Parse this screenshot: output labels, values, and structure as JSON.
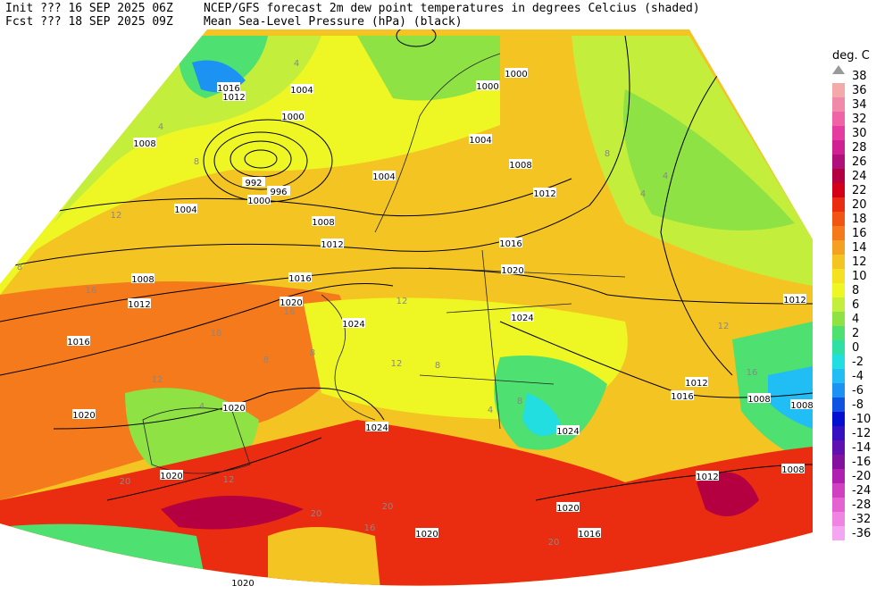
{
  "header": {
    "init": "Init  ??? 16 SEP 2025 06Z",
    "fcst": "Fcst ??? 18 SEP 2025 09Z",
    "title": "NCEP/GFS forecast 2m dew point temperatures in degrees Celcius (shaded)",
    "subtitle": "Mean Sea-Level Pressure (hPa) (black)"
  },
  "colorbar": {
    "title": "deg. C",
    "top": 38,
    "levels": [
      {
        "value": 36,
        "color": "#f4aaaa"
      },
      {
        "value": 34,
        "color": "#f08aa8"
      },
      {
        "value": 32,
        "color": "#ee64a4"
      },
      {
        "value": 30,
        "color": "#e63ca0"
      },
      {
        "value": 28,
        "color": "#d02094"
      },
      {
        "value": 26,
        "color": "#b0107a"
      },
      {
        "value": 24,
        "color": "#b40040"
      },
      {
        "value": 22,
        "color": "#d40018"
      },
      {
        "value": 20,
        "color": "#ea2c10"
      },
      {
        "value": 18,
        "color": "#f25412"
      },
      {
        "value": 16,
        "color": "#f47a1c"
      },
      {
        "value": 14,
        "color": "#f4a020"
      },
      {
        "value": 12,
        "color": "#f4c422"
      },
      {
        "value": 10,
        "color": "#f4e222"
      },
      {
        "value": 8,
        "color": "#eef624"
      },
      {
        "value": 6,
        "color": "#c4ee3c"
      },
      {
        "value": 4,
        "color": "#8ee244"
      },
      {
        "value": 2,
        "color": "#4ee070"
      },
      {
        "value": 0,
        "color": "#2ee0a4"
      },
      {
        "value": -2,
        "color": "#22dee0"
      },
      {
        "value": -4,
        "color": "#20bef4"
      },
      {
        "value": -6,
        "color": "#1c92f2"
      },
      {
        "value": -8,
        "color": "#1052e2"
      },
      {
        "value": -10,
        "color": "#0410d0"
      },
      {
        "value": -12,
        "color": "#3410c0"
      },
      {
        "value": -14,
        "color": "#6010b0"
      },
      {
        "value": -16,
        "color": "#8410a0"
      },
      {
        "value": -20,
        "color": "#b020b0"
      },
      {
        "value": -24,
        "color": "#d040c0"
      },
      {
        "value": -28,
        "color": "#e462d2"
      },
      {
        "value": -32,
        "color": "#f084e2"
      },
      {
        "value": -36,
        "color": "#f4a6f2"
      }
    ]
  },
  "isobar_labels": [
    1016,
    1012,
    1004,
    1000,
    1008,
    992,
    996,
    1000,
    1000,
    1000,
    1004,
    1004,
    1008,
    1012,
    1004,
    1008,
    1012,
    1016,
    1020,
    1008,
    1012,
    1016,
    1020,
    1024,
    1024,
    1016,
    1012,
    1012,
    1016,
    1008,
    1008,
    1020,
    1020,
    1024,
    1024,
    1020,
    1012,
    1008,
    1020,
    1016,
    1020,
    1020
  ],
  "dewpoint_labels": [
    4,
    8,
    12,
    4,
    8,
    16,
    16,
    18,
    12,
    8,
    8,
    12,
    8,
    4,
    4,
    12,
    20,
    20,
    20,
    16,
    12,
    20,
    8,
    12,
    16,
    4,
    4,
    8
  ]
}
